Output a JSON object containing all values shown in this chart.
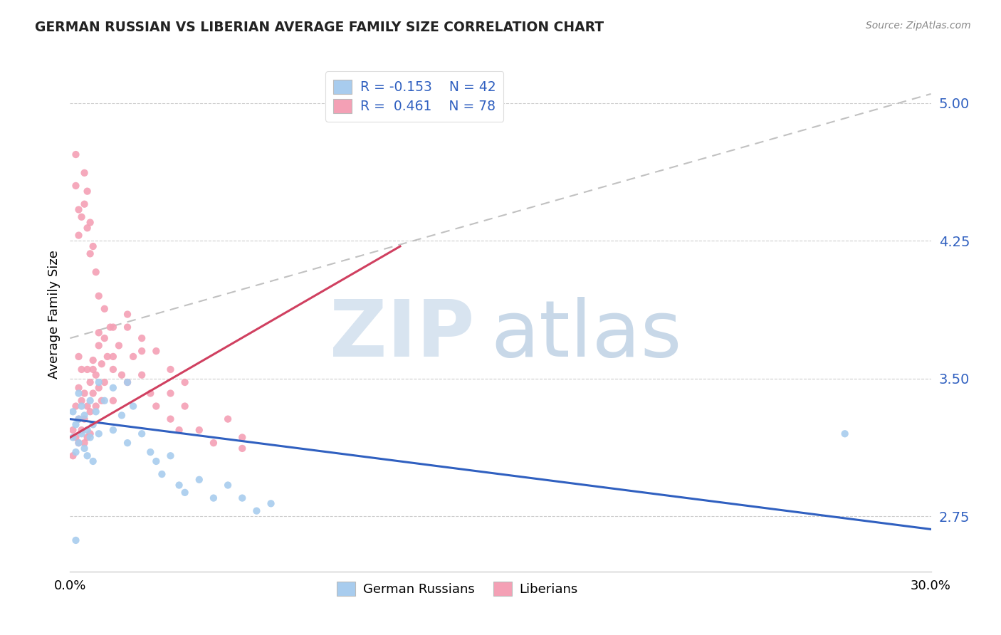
{
  "title": "GERMAN RUSSIAN VS LIBERIAN AVERAGE FAMILY SIZE CORRELATION CHART",
  "source": "Source: ZipAtlas.com",
  "ylabel": "Average Family Size",
  "xlim": [
    0.0,
    0.3
  ],
  "ylim": [
    2.45,
    5.25
  ],
  "yticks": [
    2.75,
    3.5,
    4.25,
    5.0
  ],
  "xticks": [
    0.0,
    0.3
  ],
  "xticklabels": [
    "0.0%",
    "30.0%"
  ],
  "color_blue": "#A8CCEE",
  "color_pink": "#F4A0B5",
  "color_blue_line": "#3060C0",
  "color_pink_line": "#D04060",
  "color_gray_dash": "#BBBBBB",
  "blue_line_x": [
    0.0,
    0.3
  ],
  "blue_line_y": [
    3.28,
    2.68
  ],
  "pink_line_x": [
    0.0,
    0.115
  ],
  "pink_line_y": [
    3.18,
    4.22
  ],
  "dash_line_x": [
    0.0,
    0.3
  ],
  "dash_line_y": [
    3.72,
    5.05
  ],
  "german_russian_points": [
    [
      0.001,
      3.32
    ],
    [
      0.001,
      3.18
    ],
    [
      0.002,
      3.25
    ],
    [
      0.002,
      3.1
    ],
    [
      0.003,
      3.42
    ],
    [
      0.003,
      3.28
    ],
    [
      0.003,
      3.15
    ],
    [
      0.004,
      3.35
    ],
    [
      0.004,
      3.2
    ],
    [
      0.005,
      3.3
    ],
    [
      0.005,
      3.12
    ],
    [
      0.006,
      3.22
    ],
    [
      0.006,
      3.08
    ],
    [
      0.007,
      3.38
    ],
    [
      0.007,
      3.18
    ],
    [
      0.008,
      3.25
    ],
    [
      0.008,
      3.05
    ],
    [
      0.009,
      3.32
    ],
    [
      0.01,
      3.2
    ],
    [
      0.01,
      3.48
    ],
    [
      0.012,
      3.38
    ],
    [
      0.015,
      3.45
    ],
    [
      0.015,
      3.22
    ],
    [
      0.018,
      3.3
    ],
    [
      0.02,
      3.48
    ],
    [
      0.02,
      3.15
    ],
    [
      0.022,
      3.35
    ],
    [
      0.025,
      3.2
    ],
    [
      0.028,
      3.1
    ],
    [
      0.03,
      3.05
    ],
    [
      0.032,
      2.98
    ],
    [
      0.035,
      3.08
    ],
    [
      0.038,
      2.92
    ],
    [
      0.04,
      2.88
    ],
    [
      0.045,
      2.95
    ],
    [
      0.05,
      2.85
    ],
    [
      0.055,
      2.92
    ],
    [
      0.06,
      2.85
    ],
    [
      0.065,
      2.78
    ],
    [
      0.07,
      2.82
    ],
    [
      0.27,
      3.2
    ],
    [
      0.002,
      2.62
    ]
  ],
  "liberian_points": [
    [
      0.001,
      3.22
    ],
    [
      0.001,
      3.08
    ],
    [
      0.002,
      3.35
    ],
    [
      0.002,
      3.18
    ],
    [
      0.003,
      3.45
    ],
    [
      0.003,
      3.28
    ],
    [
      0.003,
      3.15
    ],
    [
      0.004,
      3.55
    ],
    [
      0.004,
      3.38
    ],
    [
      0.004,
      3.22
    ],
    [
      0.005,
      3.42
    ],
    [
      0.005,
      3.28
    ],
    [
      0.005,
      3.15
    ],
    [
      0.006,
      3.55
    ],
    [
      0.006,
      3.35
    ],
    [
      0.006,
      3.18
    ],
    [
      0.007,
      3.48
    ],
    [
      0.007,
      3.32
    ],
    [
      0.007,
      3.2
    ],
    [
      0.008,
      3.6
    ],
    [
      0.008,
      3.42
    ],
    [
      0.009,
      3.52
    ],
    [
      0.009,
      3.35
    ],
    [
      0.01,
      3.68
    ],
    [
      0.01,
      3.45
    ],
    [
      0.011,
      3.58
    ],
    [
      0.011,
      3.38
    ],
    [
      0.012,
      3.72
    ],
    [
      0.012,
      3.48
    ],
    [
      0.013,
      3.62
    ],
    [
      0.014,
      3.78
    ],
    [
      0.015,
      3.55
    ],
    [
      0.015,
      3.38
    ],
    [
      0.017,
      3.68
    ],
    [
      0.018,
      3.52
    ],
    [
      0.02,
      3.78
    ],
    [
      0.02,
      3.48
    ],
    [
      0.022,
      3.62
    ],
    [
      0.025,
      3.52
    ],
    [
      0.028,
      3.42
    ],
    [
      0.03,
      3.35
    ],
    [
      0.035,
      3.28
    ],
    [
      0.038,
      3.22
    ],
    [
      0.04,
      3.35
    ],
    [
      0.045,
      3.22
    ],
    [
      0.05,
      3.15
    ],
    [
      0.055,
      3.28
    ],
    [
      0.06,
      3.18
    ],
    [
      0.002,
      4.55
    ],
    [
      0.003,
      4.42
    ],
    [
      0.003,
      4.28
    ],
    [
      0.004,
      4.38
    ],
    [
      0.005,
      4.62
    ],
    [
      0.005,
      4.45
    ],
    [
      0.006,
      4.52
    ],
    [
      0.006,
      4.32
    ],
    [
      0.007,
      4.35
    ],
    [
      0.007,
      4.18
    ],
    [
      0.008,
      4.22
    ],
    [
      0.009,
      4.08
    ],
    [
      0.01,
      3.95
    ],
    [
      0.012,
      3.88
    ],
    [
      0.015,
      3.78
    ],
    [
      0.02,
      3.85
    ],
    [
      0.025,
      3.72
    ],
    [
      0.03,
      3.65
    ],
    [
      0.035,
      3.55
    ],
    [
      0.04,
      3.48
    ],
    [
      0.002,
      4.72
    ],
    [
      0.003,
      3.62
    ],
    [
      0.025,
      3.65
    ],
    [
      0.01,
      3.75
    ],
    [
      0.008,
      3.55
    ],
    [
      0.015,
      3.62
    ],
    [
      0.035,
      3.42
    ],
    [
      0.06,
      3.12
    ]
  ]
}
